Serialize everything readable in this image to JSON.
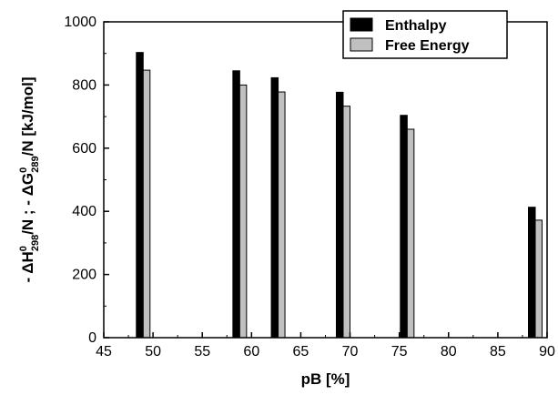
{
  "chart_data": {
    "type": "bar",
    "title": "",
    "xlabel": "pB [%]",
    "ylabel_parts": [
      {
        "t": "- ΔH",
        "k": "n"
      },
      {
        "t": "0",
        "k": "sup"
      },
      {
        "t": "298",
        "k": "sub"
      },
      {
        "t": "/N ; - ΔG",
        "k": "n"
      },
      {
        "t": "0",
        "k": "sup"
      },
      {
        "t": "289",
        "k": "sub"
      },
      {
        "t": "/N [kJ/mol]",
        "k": "n"
      }
    ],
    "xlim": [
      45,
      90
    ],
    "ylim": [
      0,
      1000
    ],
    "xticks": [
      "45",
      "50",
      "55",
      "60",
      "65",
      "70",
      "75",
      "80",
      "85",
      "90"
    ],
    "yticks": [
      "0",
      "200",
      "400",
      "600",
      "800",
      "1000"
    ],
    "x": [
      49,
      58.8,
      62.7,
      69.3,
      75.8,
      88.8
    ],
    "series": [
      {
        "name": "Enthalpy",
        "color": "#000000",
        "values": [
          903,
          845,
          823,
          777,
          704,
          413
        ]
      },
      {
        "name": "Free Energy",
        "color": "#c0c0c0",
        "values": [
          847,
          800,
          778,
          733,
          660,
          372
        ]
      }
    ],
    "legend_position": "top-right",
    "grid": false
  }
}
